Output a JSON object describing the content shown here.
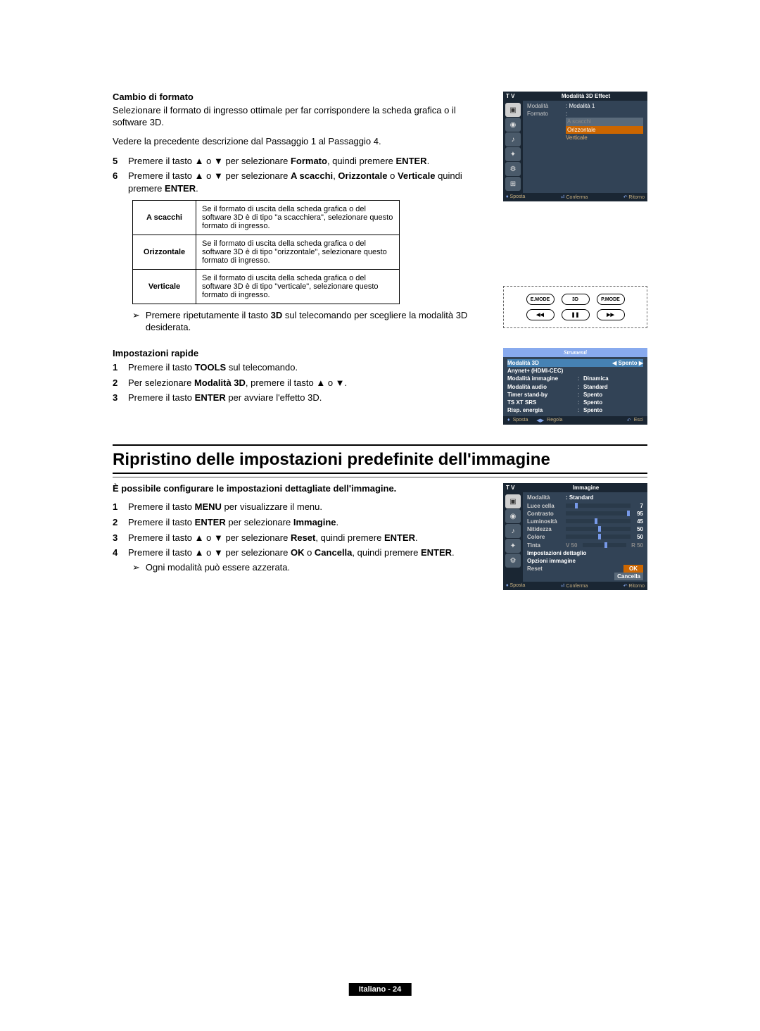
{
  "sec1": {
    "heading": "Cambio di formato",
    "p1": "Selezionare il formato di ingresso ottimale per far corrispondere la scheda grafica o il software 3D.",
    "p2": "Vedere la precedente descrizione dal Passaggio 1 al Passaggio 4.",
    "step5": "Premere il tasto ▲ o ▼ per selezionare <b>Formato</b>, quindi premere <b>ENTER</b>.",
    "step6": "Premere il tasto ▲ o ▼ per selezionare <b>A scacchi</b>, <b>Orizzontale</b> o <b>Verticale</b> quindi premere <b>ENTER</b>.",
    "tbl": {
      "r1k": "A scacchi",
      "r1v": "Se il formato di uscita della scheda grafica o del software 3D è di tipo \"a scacchiera\", selezionare questo formato di ingresso.",
      "r2k": "Orizzontale",
      "r2v": "Se il formato di uscita della scheda grafica o del software 3D è di tipo \"orizzontale\", selezionare questo formato di ingresso.",
      "r3k": "Verticale",
      "r3v": "Se il formato di uscita della scheda grafica o del software 3D è di tipo \"verticale\", selezionare questo formato di ingresso."
    },
    "note": "Premere ripetutamente il tasto <b>3D</b> sul telecomando per scegliere la modalità 3D desiderata."
  },
  "osd1": {
    "tv": "T V",
    "title": "Modalità 3D Effect",
    "r1k": "Modalità",
    "r1v": ": Modalità 1",
    "r2k": "Formato",
    "r2v": ":",
    "o1": "A scacchi",
    "o2": "Orizzontale",
    "o3": "Verticale",
    "f1": "Sposta",
    "f2": "Conferma",
    "f3": "Ritorno"
  },
  "remote": {
    "b1": "E.MODE",
    "b2": "3D",
    "b3": "P.MODE",
    "b4": "◀◀",
    "b5": "❚❚",
    "b6": "▶▶"
  },
  "sec2": {
    "heading": "Impostazioni rapide",
    "s1": "Premere il tasto <b>TOOLS</b> sul telecomando.",
    "s2": "Per selezionare <b>Modalità 3D</b>, premere il tasto ▲ o ▼.",
    "s3": "Premere il tasto <b>ENTER</b> per avviare l'effetto 3D."
  },
  "tools": {
    "title": "Strumenti",
    "r1k": "Modalità 3D",
    "r1v": "◀    Spento    ▶",
    "r2k": "Anynet+ (HDMI-CEC)",
    "r3k": "Modalità immagine",
    "r3v": "Dinamica",
    "r4k": "Modalità audio",
    "r4v": "Standard",
    "r5k": "Timer stand-by",
    "r5v": "Spento",
    "r6k": "TS XT SRS",
    "r6v": "Spento",
    "r7k": "Risp. energia",
    "r7v": "Spento",
    "f1": "Sposta",
    "f2": "Regola",
    "f3": "Esci"
  },
  "big": "Ripristino delle impostazioni predefinite dell'immagine",
  "sec3": {
    "intro": "È possibile configurare le impostazioni dettagliate dell'immagine.",
    "s1": "Premere il tasto <b>MENU</b> per visualizzare il menu.",
    "s2": "Premere il tasto <b>ENTER</b> per selezionare <b>Immagine</b>.",
    "s3": "Premere il tasto ▲ o ▼ per selezionare <b>Reset</b>, quindi premere <b>ENTER</b>.",
    "s4": "Premere il tasto ▲ o ▼ per selezionare <b>OK</b> o <b>Cancella</b>, quindi premere <b>ENTER</b>.",
    "note": "Ogni modalità può essere azzerata."
  },
  "osd2": {
    "tv": "T V",
    "title": "Immagine",
    "r1k": "Modalità",
    "r1v": ": Standard",
    "r2k": "Luce cella",
    "r2v": "7",
    "r2p": 14,
    "r3k": "Contrasto",
    "r3v": "95",
    "r3p": 95,
    "r4k": "Luminosità",
    "r4v": "45",
    "r4p": 45,
    "r5k": "Nitidezza",
    "r5v": "50",
    "r5p": 50,
    "r6k": "Colore",
    "r6v": "50",
    "r6p": 50,
    "r7k": "Tinta",
    "r7l": "V 50",
    "r7r": "R 50",
    "r8": "Impostazioni dettaglio",
    "r9": "Opzioni immagine",
    "r10k": "Reset",
    "r10a": "OK",
    "r10b": "Cancella",
    "f1": "Sposta",
    "f2": "Conferma",
    "f3": "Ritorno"
  },
  "footer": "Italiano - 24"
}
